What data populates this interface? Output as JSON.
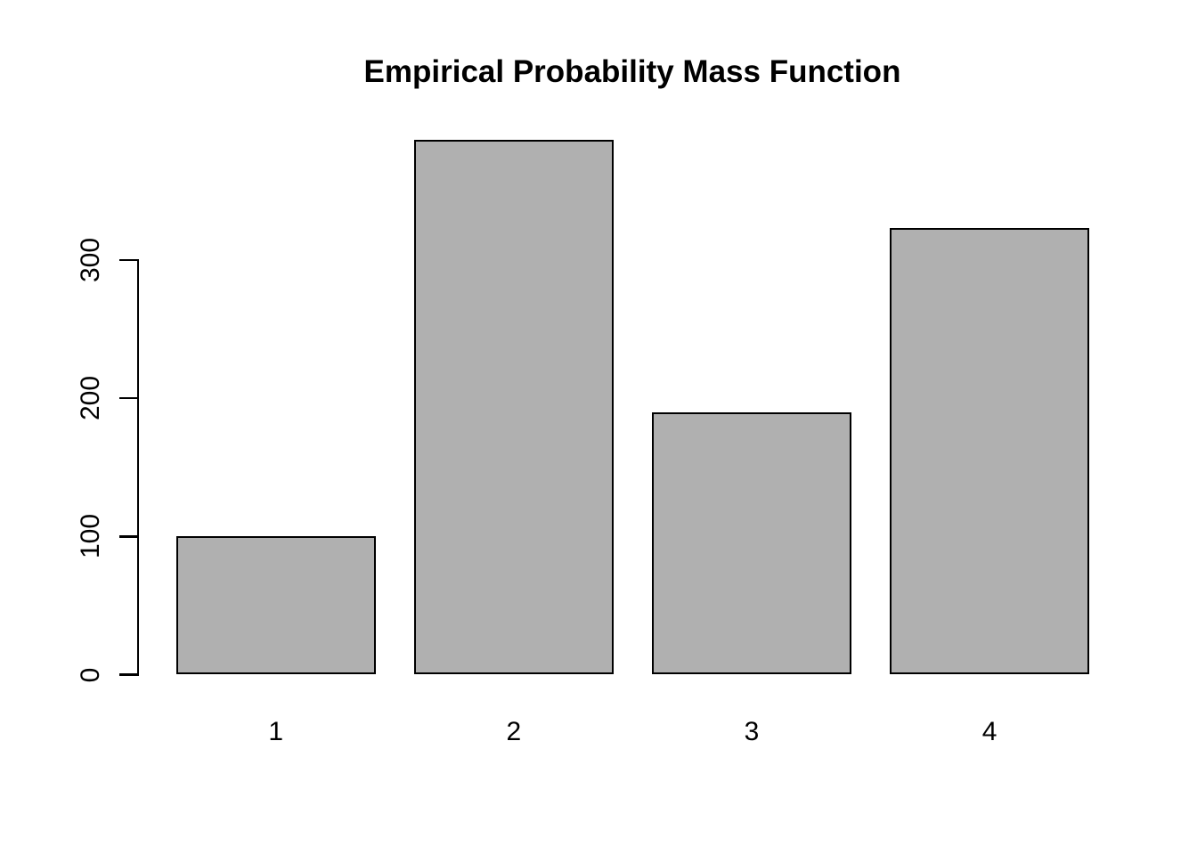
{
  "chart_data": {
    "type": "bar",
    "title": "Empirical Probability Mass Function",
    "categories": [
      "1",
      "2",
      "3",
      "4"
    ],
    "values": [
      100,
      387,
      190,
      323
    ],
    "xlabel": "",
    "ylabel": "",
    "yticks": [
      0,
      100,
      200,
      300
    ],
    "ylim": [
      0,
      388
    ],
    "grid": false,
    "legend": false,
    "bar_fill": "#b0b0b0",
    "bar_border": "#000000",
    "axis_color": "#000000",
    "background": "#ffffff"
  }
}
